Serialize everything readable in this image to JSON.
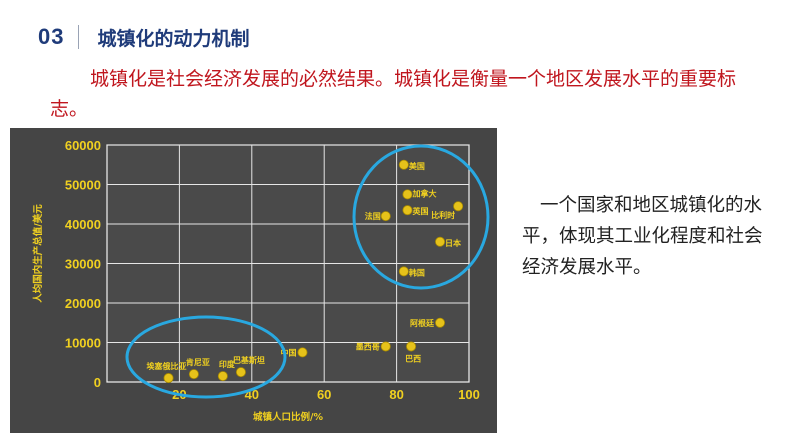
{
  "header": {
    "number": "03",
    "title": "城镇化的动力机制"
  },
  "intro": "城镇化是社会经济发展的必然结果。城镇化是衡量一个地区发展水平的重要标志。",
  "side_text": "一个国家和地区城镇化的水平，体现其工业化程度和社会经济发展水平。",
  "colors": {
    "title": "#1f3b7a",
    "accent_text": "#c0161e",
    "chart_bg": "#454545",
    "point": "#e6c21a",
    "highlight_ellipse": "#29a8e0"
  },
  "chart_data": {
    "type": "scatter",
    "xlabel": "城镇人口比例/%",
    "ylabel": "人均国内生产总值/美元",
    "xlim": [
      0,
      100
    ],
    "ylim": [
      0,
      60000
    ],
    "xticks": [
      20,
      40,
      60,
      80,
      100
    ],
    "yticks": [
      0,
      10000,
      20000,
      30000,
      40000,
      50000,
      60000
    ],
    "grid": true,
    "points": [
      {
        "label": "美国",
        "x": 82,
        "y": 55000
      },
      {
        "label": "加拿大",
        "x": 83,
        "y": 47500
      },
      {
        "label": "英国",
        "x": 83,
        "y": 43500
      },
      {
        "label": "比利时",
        "x": 97,
        "y": 44500
      },
      {
        "label": "法国",
        "x": 77,
        "y": 42000
      },
      {
        "label": "日本",
        "x": 92,
        "y": 35500
      },
      {
        "label": "韩国",
        "x": 82,
        "y": 28000
      },
      {
        "label": "阿根廷",
        "x": 92,
        "y": 15000
      },
      {
        "label": "墨西哥",
        "x": 77,
        "y": 9000
      },
      {
        "label": "巴西",
        "x": 84,
        "y": 9000
      },
      {
        "label": "中国",
        "x": 54,
        "y": 7500
      },
      {
        "label": "埃塞俄比亚",
        "x": 17,
        "y": 1000
      },
      {
        "label": "肯尼亚",
        "x": 24,
        "y": 2000
      },
      {
        "label": "印度",
        "x": 32,
        "y": 1500
      },
      {
        "label": "巴基斯坦",
        "x": 37,
        "y": 2500
      }
    ]
  }
}
